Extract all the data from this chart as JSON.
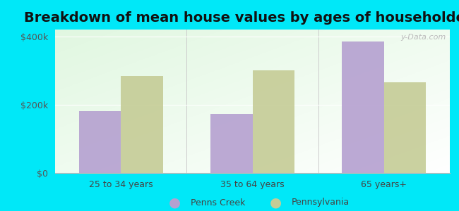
{
  "title": "Breakdown of mean house values by ages of householders",
  "categories": [
    "25 to 34 years",
    "35 to 64 years",
    "65 years+"
  ],
  "penns_creek_values": [
    182000,
    173000,
    385000
  ],
  "pennsylvania_values": [
    285000,
    300000,
    265000
  ],
  "penns_creek_color": "#b5a0d0",
  "pennsylvania_color": "#c5cc96",
  "background_outer": "#00e8f8",
  "ylim": [
    0,
    420000
  ],
  "yticks": [
    0,
    200000,
    400000
  ],
  "ytick_labels": [
    "$0",
    "$200k",
    "$400k"
  ],
  "legend_labels": [
    "Penns Creek",
    "Pennsylvania"
  ],
  "bar_width": 0.32,
  "title_fontsize": 14,
  "watermark": "y-Data.com"
}
